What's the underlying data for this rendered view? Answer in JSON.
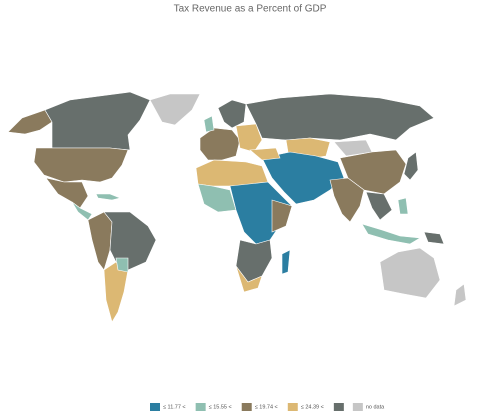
{
  "header": {
    "title": "Tax Revenue as a Percent of GDP"
  },
  "legend": {
    "items": [
      {
        "label": "≤ 11.77 <",
        "color": "#2b7ea1"
      },
      {
        "label": "≤ 15.55 <",
        "color": "#8fbfb1"
      },
      {
        "label": "≤ 19.74 <",
        "color": "#8a7a5d"
      },
      {
        "label": "≤ 24.39 <",
        "color": "#dcb873"
      },
      {
        "label": null,
        "color": "#676f6c"
      },
      {
        "label": "no data",
        "color": "#c6c6c6"
      }
    ]
  }
}
